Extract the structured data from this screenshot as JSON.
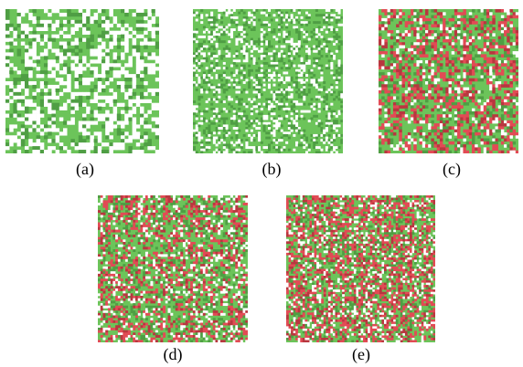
{
  "figure": {
    "colors": {
      "background": "#ffffff",
      "green": "#6cc45a",
      "green_dark": "#4f9e44",
      "red": "#e24b55",
      "red_dark": "#b8373f",
      "white": "#ffffff"
    },
    "panels": [
      {
        "label": "(a)",
        "pattern": "green-white-coarse",
        "grid_cells": 40,
        "mix": {
          "green": 0.62,
          "white": 0.38,
          "red": 0.0
        }
      },
      {
        "label": "(b)",
        "pattern": "green-white-fine",
        "grid_cells": 60,
        "mix": {
          "green": 0.8,
          "white": 0.2,
          "red": 0.0
        }
      },
      {
        "label": "(c)",
        "pattern": "green-red-white",
        "grid_cells": 48,
        "mix": {
          "green": 0.58,
          "white": 0.1,
          "red": 0.32
        }
      },
      {
        "label": "(d)",
        "pattern": "green-red-white-fine",
        "grid_cells": 60,
        "mix": {
          "green": 0.56,
          "white": 0.14,
          "red": 0.3
        }
      },
      {
        "label": "(e)",
        "pattern": "green-red-white-fine",
        "grid_cells": 64,
        "mix": {
          "green": 0.48,
          "white": 0.14,
          "red": 0.38
        }
      }
    ]
  }
}
